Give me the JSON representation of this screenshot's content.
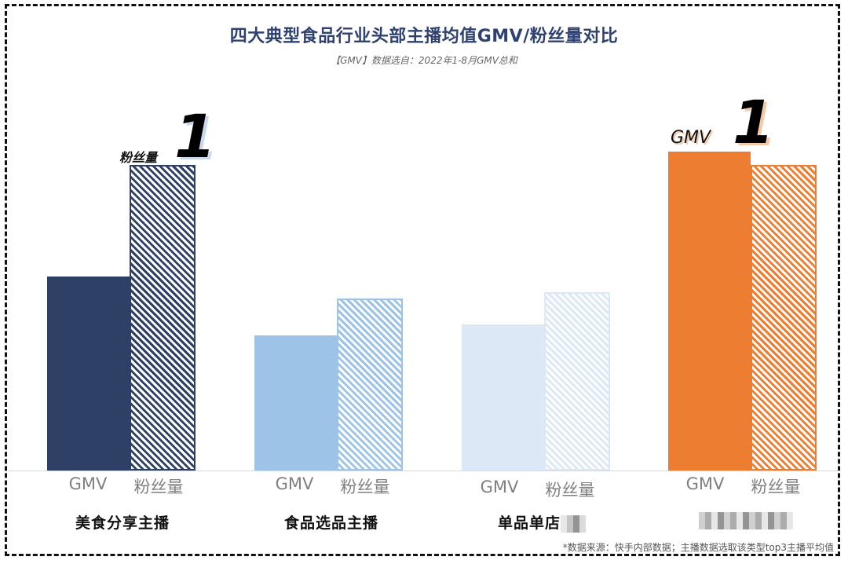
{
  "title": "四大典型食品行业头部主播均值GMV/粉丝量对比",
  "subtitle": "【GMV】数据选自：2022年1-8月GMV总和",
  "footer": "*数据来源：快手内部数据；主播数据选取该类型top3主播平均值",
  "series_labels": {
    "gmv": "GMV",
    "fans": "粉丝量"
  },
  "annotations": {
    "group1_badge": "粉丝量",
    "group1_rank": "1",
    "group4_badge": "GMV",
    "group4_rank": "1"
  },
  "colors": {
    "group1": "#2f4066",
    "group2": "#9dc3e6",
    "group3": "#dce8f5",
    "group4": "#ed7d31"
  },
  "chart_data": {
    "type": "bar",
    "title": "四大典型食品行业头部主播均值GMV/粉丝量对比",
    "subtitle": "【GMV】数据选自：2022年1-8月GMV总和",
    "categories": [
      "美食分享主播",
      "食品选品主播",
      "单品单店",
      "品牌主播"
    ],
    "series": [
      {
        "name": "GMV",
        "style": "solid",
        "values": [
          247,
          172,
          186,
          406
        ]
      },
      {
        "name": "粉丝量",
        "style": "hatched",
        "values": [
          389,
          219,
          227,
          389
        ]
      }
    ],
    "value_note": "relative bar heights (no axis shown)",
    "xlabel": "",
    "ylabel": "",
    "grid": false,
    "legend": "per-bar labels under each bar",
    "annotations": [
      "美食分享主播 粉丝量 rank 1",
      "品牌主播 GMV rank 1"
    ]
  }
}
